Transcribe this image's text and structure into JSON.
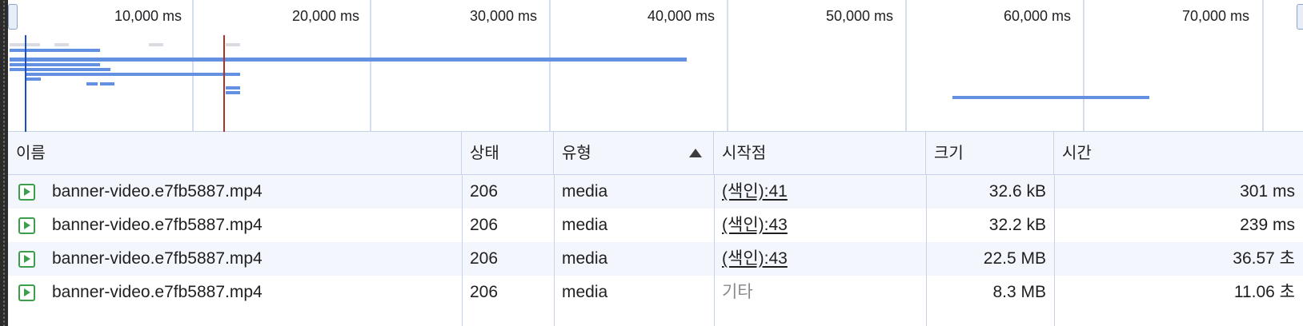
{
  "timeline": {
    "ticks": [
      "10,000 ms",
      "20,000 ms",
      "30,000 ms",
      "40,000 ms",
      "50,000 ms",
      "60,000 ms",
      "70,000 ms"
    ],
    "bar_color": "#6490e2",
    "dom_content_loaded_color": "#1a4fc4",
    "load_marker_color": "#b0332a"
  },
  "table": {
    "headers": {
      "name": "이름",
      "status": "상태",
      "type": "유형",
      "initiator": "시작점",
      "size": "크기",
      "time": "시간"
    },
    "sort_column": "type",
    "rows": [
      {
        "name": "banner-video.e7fb5887.mp4",
        "status": "206",
        "type": "media",
        "initiator": "(색인):41",
        "initiator_link": true,
        "size": "32.6 kB",
        "time": "301 ms"
      },
      {
        "name": "banner-video.e7fb5887.mp4",
        "status": "206",
        "type": "media",
        "initiator": "(색인):43",
        "initiator_link": true,
        "size": "32.2 kB",
        "time": "239 ms"
      },
      {
        "name": "banner-video.e7fb5887.mp4",
        "status": "206",
        "type": "media",
        "initiator": "(색인):43",
        "initiator_link": true,
        "size": "22.5 MB",
        "time": "36.57 초"
      },
      {
        "name": "banner-video.e7fb5887.mp4",
        "status": "206",
        "type": "media",
        "initiator": "기타",
        "initiator_link": false,
        "size": "8.3 MB",
        "time": "11.06 초"
      }
    ]
  }
}
